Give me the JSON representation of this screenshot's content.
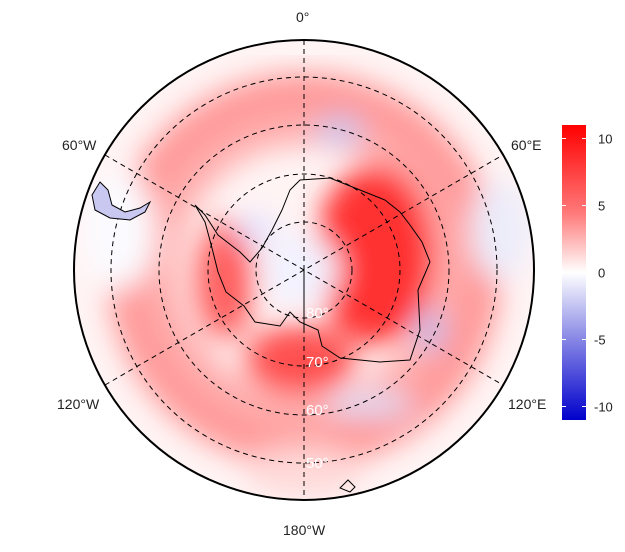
{
  "map": {
    "projection": "south-polar-stereographic",
    "longitude_labels": {
      "top": "0°",
      "left_upper": "60°W",
      "right_upper": "60°E",
      "left_lower": "120°W",
      "right_lower": "120°E",
      "bottom": "180°W"
    },
    "latitude_labels": [
      "80°",
      "70°",
      "60°",
      "50°"
    ]
  },
  "colorbar": {
    "range": [
      -11,
      11
    ],
    "ticks": [
      "10",
      "5",
      "0",
      "-5",
      "-10"
    ],
    "tick_values": [
      10,
      5,
      0,
      -5,
      -10
    ],
    "colors": {
      "max": "#ff0000",
      "mid": "#ffffff",
      "min": "#0000cc"
    }
  }
}
